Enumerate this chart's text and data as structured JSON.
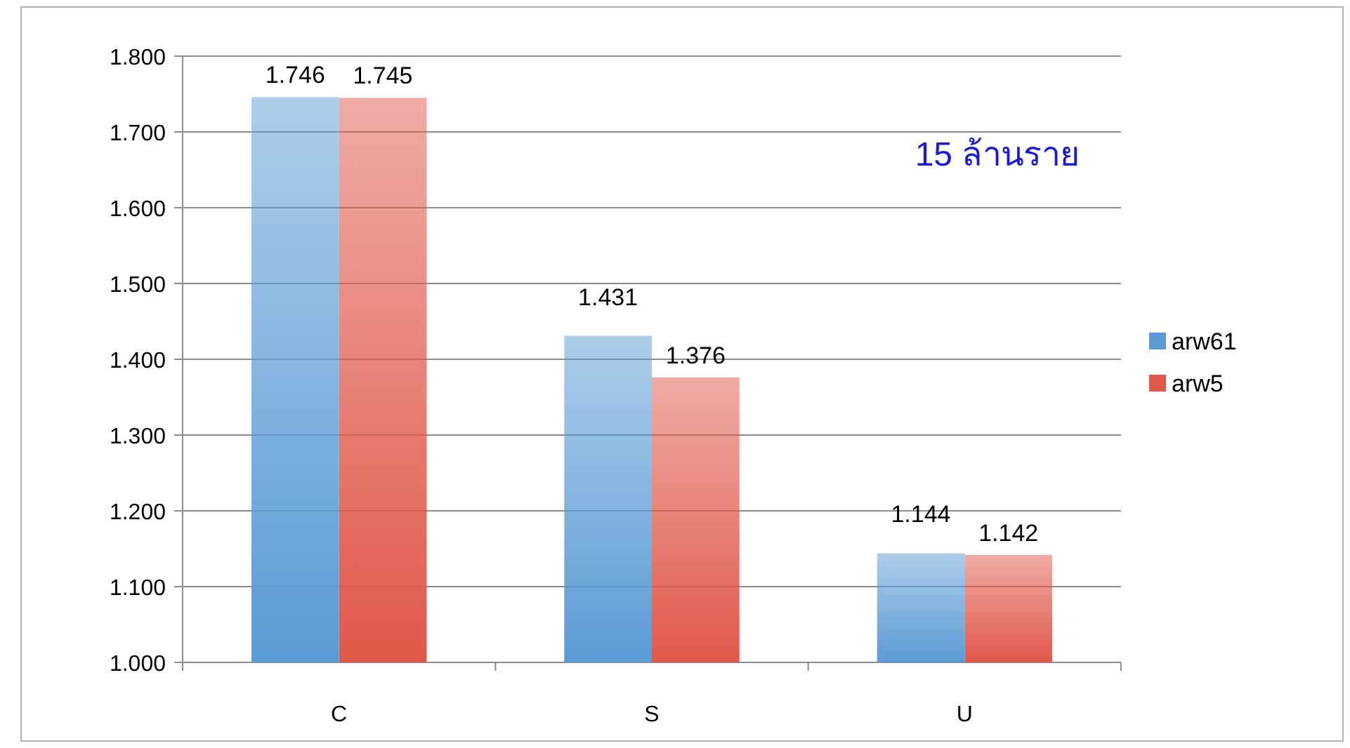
{
  "chart_data": {
    "type": "bar",
    "categories": [
      "C",
      "S",
      "U"
    ],
    "series": [
      {
        "name": "arw61",
        "color": "#5b9bd5",
        "values": [
          1.746,
          1.431,
          1.144
        ]
      },
      {
        "name": "arw5",
        "color": "#e0584a",
        "values": [
          1.745,
          1.376,
          1.142
        ]
      }
    ],
    "ylim": [
      1.0,
      1.8
    ],
    "yticks": [
      {
        "value": 1.0,
        "label": "1.000"
      },
      {
        "value": 1.1,
        "label": "1.100"
      },
      {
        "value": 1.2,
        "label": "1.200"
      },
      {
        "value": 1.3,
        "label": "1.300"
      },
      {
        "value": 1.4,
        "label": "1.400"
      },
      {
        "value": 1.5,
        "label": "1.500"
      },
      {
        "value": 1.6,
        "label": "1.600"
      },
      {
        "value": 1.7,
        "label": "1.700"
      },
      {
        "value": 1.8,
        "label": "1.800"
      }
    ],
    "grid": "y",
    "legend": "right",
    "data_labels": true,
    "annotations": [
      "15 ล้านราย"
    ]
  }
}
